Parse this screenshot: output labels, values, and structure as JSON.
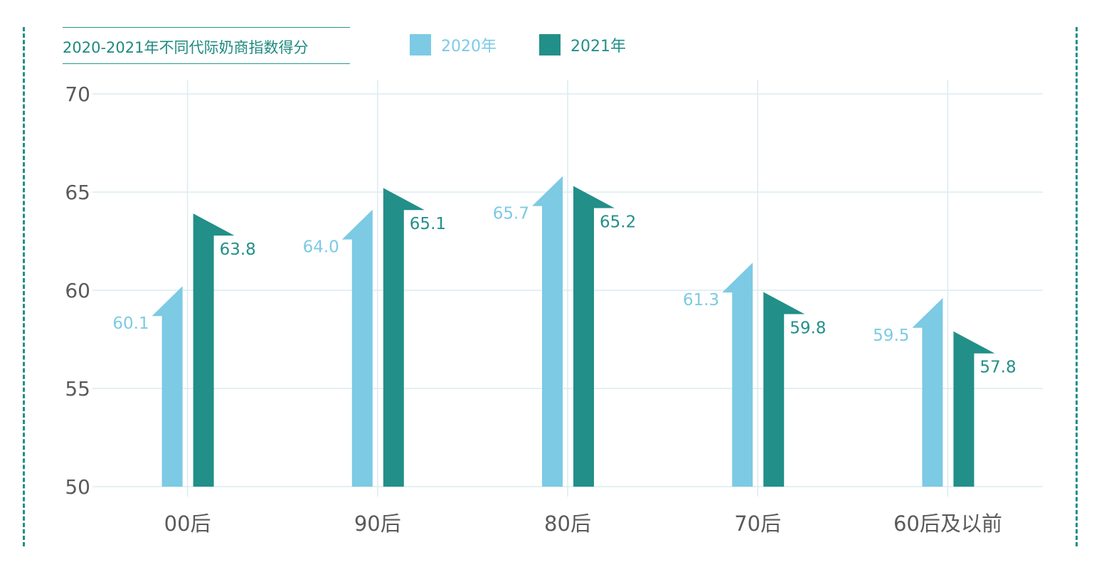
{
  "title": "2020-2021年不同代际奶商指数得分",
  "legend": [
    {
      "label": "2020年",
      "color": "#7ccae4"
    },
    {
      "label": "2021年",
      "color": "#228f89"
    }
  ],
  "chart_data": {
    "type": "bar",
    "title": "2020-2021年不同代际奶商指数得分",
    "categories": [
      "00后",
      "90后",
      "80后",
      "70后",
      "60后及以前"
    ],
    "series": [
      {
        "name": "2020年",
        "values": [
          60.1,
          64.0,
          65.7,
          61.3,
          59.5
        ],
        "labels": [
          "60.1",
          "64.0",
          "65.7",
          "61.3",
          "59.5"
        ],
        "color": "#7ccae4"
      },
      {
        "name": "2021年",
        "values": [
          63.8,
          65.1,
          65.2,
          59.8,
          57.8
        ],
        "labels": [
          "63.8",
          "65.1",
          "65.2",
          "59.8",
          "57.8"
        ],
        "color": "#228f89"
      }
    ],
    "ylim": [
      50,
      70
    ],
    "yticks": [
      50,
      55,
      60,
      65,
      70
    ],
    "grid": true,
    "legend_position": "top",
    "mark_shape": "arrow"
  }
}
